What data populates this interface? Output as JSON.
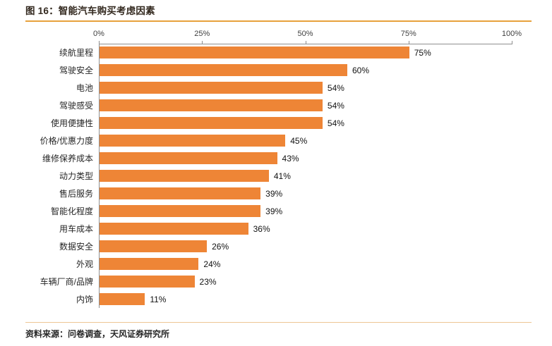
{
  "figure": {
    "title": "图 16：智能汽车购买考虑因素",
    "source": "资料来源：问卷调查，天风证券研究所"
  },
  "chart_data": {
    "type": "bar",
    "orientation": "horizontal",
    "title": "智能汽车购买考虑因素",
    "categories": [
      "续航里程",
      "驾驶安全",
      "电池",
      "驾驶感受",
      "使用便捷性",
      "价格/优惠力度",
      "维修保养成本",
      "动力类型",
      "售后服务",
      "智能化程度",
      "用车成本",
      "数据安全",
      "外观",
      "车辆厂商/品牌",
      "内饰"
    ],
    "values": [
      75,
      60,
      54,
      54,
      54,
      45,
      43,
      41,
      39,
      39,
      36,
      26,
      24,
      23,
      11
    ],
    "value_labels": [
      "75%",
      "60%",
      "54%",
      "54%",
      "54%",
      "45%",
      "43%",
      "41%",
      "39%",
      "39%",
      "36%",
      "26%",
      "24%",
      "23%",
      "11%"
    ],
    "x_axis": {
      "position": "top",
      "min": 0,
      "max": 100,
      "tick_values": [
        0,
        25,
        50,
        75,
        100
      ],
      "tick_labels": [
        "0%",
        "25%",
        "50%",
        "75%",
        "100%"
      ]
    },
    "grid": false,
    "legend": null,
    "colors": {
      "bar": "#EE8536",
      "axis_line": "#8f8f8f",
      "title_divider": "#E7A13C",
      "footer_divider": "#EDC694"
    }
  }
}
